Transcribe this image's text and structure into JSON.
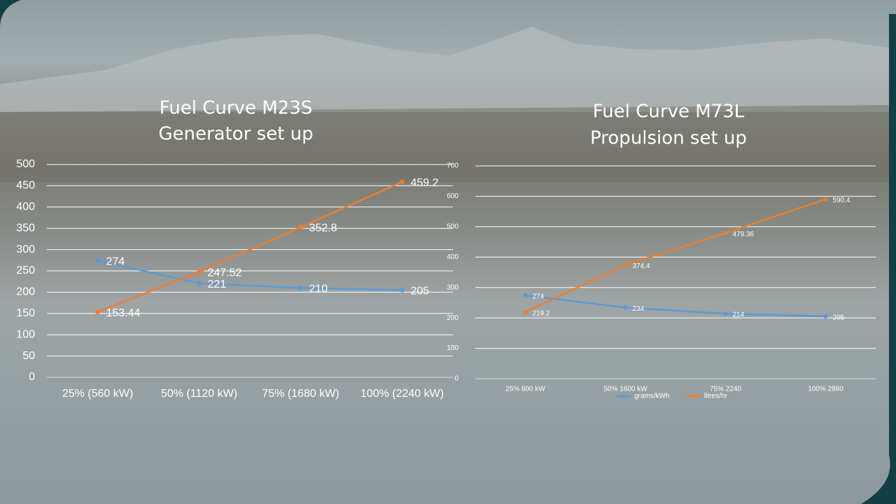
{
  "chart_data": [
    {
      "type": "line",
      "title": "Fuel Curve M23S",
      "subtitle": "Generator set up",
      "categories": [
        "25% (560 kW)",
        "50% (1120 kW)",
        "75% (1680 kW)",
        "100%  (2240 kW)"
      ],
      "series": [
        {
          "color": "#5b9bd5",
          "values": [
            274,
            221,
            210,
            205
          ]
        },
        {
          "color": "#ed7d31",
          "values": [
            153.44,
            247.52,
            352.8,
            459.2
          ]
        }
      ],
      "ylim": [
        0,
        500
      ],
      "yticks": [
        0,
        50,
        100,
        150,
        200,
        250,
        300,
        350,
        400,
        450,
        500
      ],
      "grid": true
    },
    {
      "type": "line",
      "title": "Fuel Curve M73L",
      "subtitle": "Propulsion set up",
      "categories": [
        "25% 800 kW",
        "50% 1600 kW",
        "75% 2240",
        "100% 2880"
      ],
      "series": [
        {
          "name": "grams/kWh",
          "color": "#5b9bd5",
          "values": [
            274,
            234,
            214,
            205
          ]
        },
        {
          "name": "litres/hr",
          "color": "#ed7d31",
          "values": [
            219.2,
            374.4,
            479.36,
            590.4
          ]
        }
      ],
      "ylim": [
        0,
        700
      ],
      "yticks": [
        0,
        100,
        200,
        300,
        400,
        500,
        600,
        700
      ],
      "grid": true,
      "legend": "bottom"
    }
  ]
}
